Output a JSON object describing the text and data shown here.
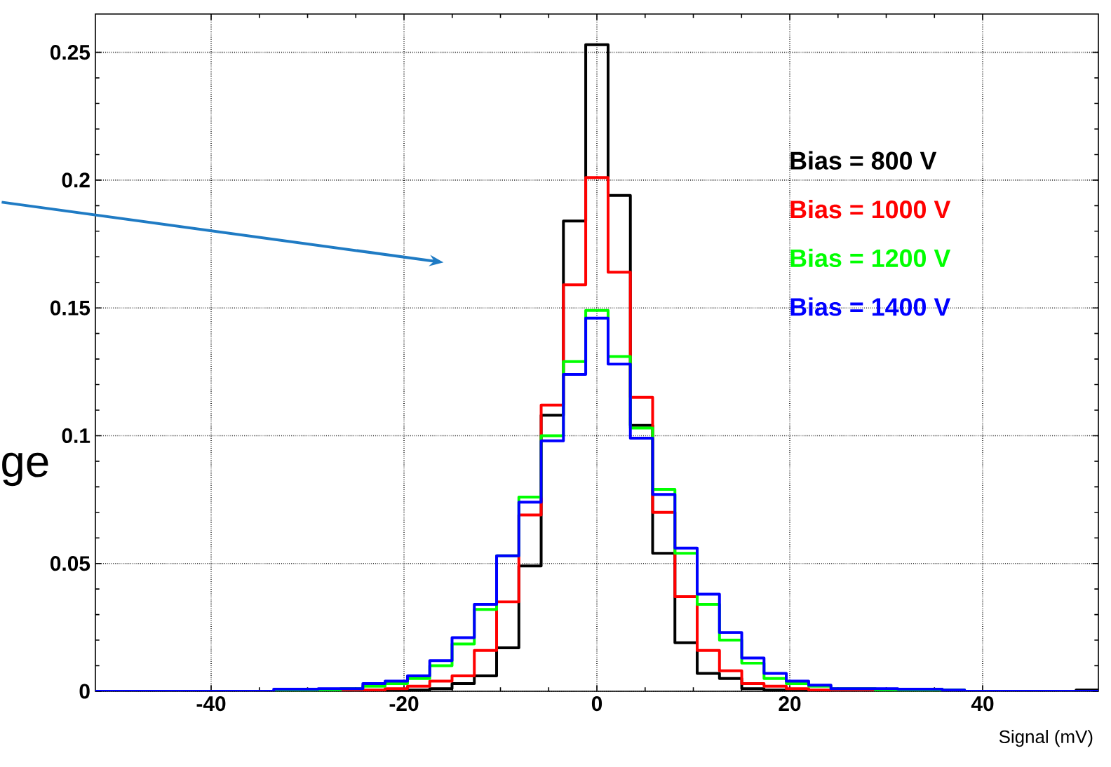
{
  "chart_data": {
    "type": "histogram",
    "bins": [
      -52,
      -49.69,
      -47.38,
      -45.07,
      -42.76,
      -40.44,
      -38.13,
      -35.82,
      -33.51,
      -31.2,
      -28.89,
      -26.58,
      -24.27,
      -21.96,
      -19.64,
      -17.33,
      -15.02,
      -12.71,
      -10.4,
      -8.09,
      -5.78,
      -3.47,
      -1.16,
      1.16,
      3.47,
      5.78,
      8.09,
      10.4,
      12.71,
      15.02,
      17.33,
      19.64,
      21.96,
      24.27,
      26.58,
      28.89,
      31.2,
      33.51,
      35.82,
      38.13,
      40.44,
      42.76,
      45.07,
      47.38,
      49.69,
      52
    ],
    "series": [
      {
        "name": "Bias = 800 V",
        "color": "#000000",
        "values": [
          0,
          0,
          0,
          0,
          0,
          0,
          0,
          0,
          0,
          0,
          0,
          0,
          0,
          0,
          0.0005,
          0.001,
          0.003,
          0.006,
          0.017,
          0.049,
          0.108,
          0.184,
          0.253,
          0.194,
          0.104,
          0.054,
          0.019,
          0.007,
          0.005,
          0.001,
          0.0005,
          0,
          0,
          0,
          0,
          0,
          0,
          0,
          0,
          0,
          0,
          0,
          0,
          0,
          0.0005
        ]
      },
      {
        "name": "Bias = 1000 V",
        "color": "#ff0000",
        "values": [
          0,
          0,
          0,
          0,
          0,
          0,
          0,
          0,
          0,
          0,
          0,
          0,
          0.0005,
          0.001,
          0.002,
          0.004,
          0.006,
          0.016,
          0.035,
          0.069,
          0.112,
          0.159,
          0.201,
          0.164,
          0.115,
          0.07,
          0.037,
          0.016,
          0.008,
          0.003,
          0.002,
          0.001,
          0.0005,
          0,
          0,
          0,
          0.0005,
          0,
          0,
          0,
          0,
          0,
          0,
          0,
          0
        ]
      },
      {
        "name": "Bias = 1200 V",
        "color": "#00ff00",
        "values": [
          0,
          0,
          0,
          0,
          0,
          0,
          0,
          0,
          0,
          0.0003,
          0.0005,
          0.001,
          0.002,
          0.003,
          0.005,
          0.01,
          0.0185,
          0.032,
          0.053,
          0.076,
          0.1,
          0.129,
          0.149,
          0.131,
          0.103,
          0.079,
          0.054,
          0.034,
          0.02,
          0.011,
          0.005,
          0.003,
          0.002,
          0.001,
          0.001,
          0,
          0,
          0,
          0.0005,
          0,
          0,
          0,
          0,
          0,
          0
        ]
      },
      {
        "name": "Bias = 1400 V",
        "color": "#0000ff",
        "values": [
          0,
          0,
          0,
          0,
          0,
          0,
          0,
          0,
          0.0008,
          0.0008,
          0.001,
          0.001,
          0.003,
          0.004,
          0.006,
          0.012,
          0.021,
          0.034,
          0.053,
          0.074,
          0.098,
          0.124,
          0.146,
          0.128,
          0.099,
          0.077,
          0.056,
          0.038,
          0.023,
          0.013,
          0.007,
          0.004,
          0.0024,
          0.001,
          0.001,
          0.001,
          0.0008,
          0.0008,
          0.0005,
          0,
          0,
          0,
          0,
          0,
          0
        ]
      }
    ],
    "xlabel": "Signal (mV)",
    "xlim": [
      -52,
      52
    ],
    "xticks": [
      -40,
      -20,
      0,
      20,
      40
    ],
    "ylim": [
      0,
      0.265
    ],
    "yticks": [
      0,
      0.05,
      0.1,
      0.15,
      0.2,
      0.25
    ],
    "grid": true,
    "legend": "top right",
    "annotations": [
      "ge"
    ]
  }
}
